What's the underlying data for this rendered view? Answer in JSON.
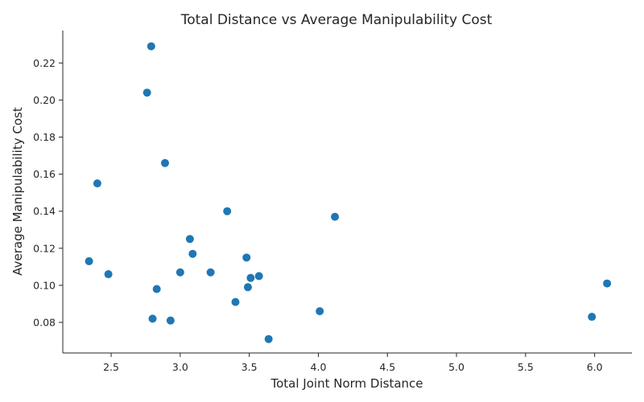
{
  "chart_data": {
    "type": "scatter",
    "title": "Total Distance vs Average Manipulability Cost",
    "xlabel": "Total Joint Norm Distance",
    "ylabel": "Average Manipulability Cost",
    "xlim": [
      2.15,
      6.27
    ],
    "ylim": [
      0.0635,
      0.2375
    ],
    "xticks": [
      2.5,
      3.0,
      3.5,
      4.0,
      4.5,
      5.0,
      5.5,
      6.0
    ],
    "yticks": [
      0.08,
      0.1,
      0.12,
      0.14,
      0.16,
      0.18,
      0.2,
      0.22
    ],
    "xtick_labels": [
      "2.5",
      "3.0",
      "3.5",
      "4.0",
      "4.5",
      "5.0",
      "5.5",
      "6.0"
    ],
    "ytick_labels": [
      "0.08",
      "0.10",
      "0.12",
      "0.14",
      "0.16",
      "0.18",
      "0.20",
      "0.22"
    ],
    "grid": false,
    "point_color": "#1f77b4",
    "points": [
      {
        "x": 2.79,
        "y": 0.229
      },
      {
        "x": 2.76,
        "y": 0.204
      },
      {
        "x": 2.89,
        "y": 0.166
      },
      {
        "x": 2.4,
        "y": 0.155
      },
      {
        "x": 3.34,
        "y": 0.14
      },
      {
        "x": 4.12,
        "y": 0.137
      },
      {
        "x": 3.07,
        "y": 0.125
      },
      {
        "x": 3.09,
        "y": 0.117
      },
      {
        "x": 3.48,
        "y": 0.115
      },
      {
        "x": 2.34,
        "y": 0.113
      },
      {
        "x": 3.0,
        "y": 0.107
      },
      {
        "x": 3.22,
        "y": 0.107
      },
      {
        "x": 2.48,
        "y": 0.106
      },
      {
        "x": 3.57,
        "y": 0.105
      },
      {
        "x": 3.51,
        "y": 0.104
      },
      {
        "x": 6.09,
        "y": 0.101
      },
      {
        "x": 3.49,
        "y": 0.099
      },
      {
        "x": 2.83,
        "y": 0.098
      },
      {
        "x": 3.4,
        "y": 0.091
      },
      {
        "x": 4.01,
        "y": 0.086
      },
      {
        "x": 5.98,
        "y": 0.083
      },
      {
        "x": 2.8,
        "y": 0.082
      },
      {
        "x": 2.93,
        "y": 0.081
      },
      {
        "x": 3.64,
        "y": 0.071
      }
    ]
  }
}
